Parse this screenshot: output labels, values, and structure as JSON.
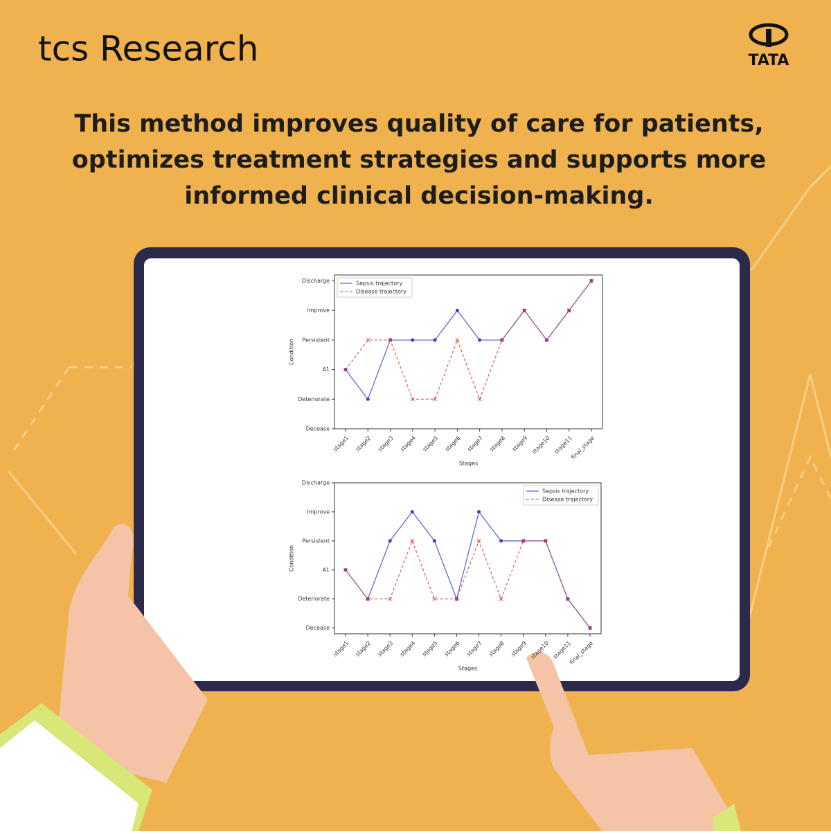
{
  "header": {
    "brand": "tcs Research",
    "logo": "TATA",
    "headline": [
      "This method improves quality of care for patients,",
      "optimizes treatment strategies and supports more",
      "informed clinical decision-making."
    ]
  },
  "chart_data": [
    {
      "type": "line",
      "xlabel": "Stages",
      "ylabel": "Condition",
      "categories": [
        "stage1",
        "stage2",
        "stage3",
        "stage4",
        "stage5",
        "stage6",
        "stage7",
        "stage8",
        "stage9",
        "stage10",
        "stage11",
        "final_stage"
      ],
      "ylim": [
        0,
        5.2
      ],
      "yticks": [
        {
          "value": 0,
          "label": "Decease"
        },
        {
          "value": 1,
          "label": "Deteriorate"
        },
        {
          "value": 2,
          "label": "A1"
        },
        {
          "value": 3,
          "label": "Persistent"
        },
        {
          "value": 4,
          "label": "Improve"
        },
        {
          "value": 5,
          "label": "Discharge"
        }
      ],
      "legend": "upper left",
      "series": [
        {
          "name": "Sepsis trajectory",
          "color": "#3a3ad8",
          "values": [
            2,
            1,
            3,
            3,
            3,
            4,
            3,
            3,
            4,
            3,
            4,
            5
          ]
        },
        {
          "name": "Disease trajectory",
          "color": "#e03c3c",
          "values": [
            2,
            3,
            3,
            1,
            1,
            3,
            1,
            3,
            4,
            3,
            4,
            5
          ]
        }
      ]
    },
    {
      "type": "line",
      "xlabel": "Stages",
      "ylabel": "Condition",
      "categories": [
        "stage1",
        "stage2",
        "stage3",
        "stage4",
        "stage5",
        "stage6",
        "stage7",
        "stage8",
        "stage9",
        "stage10",
        "stage11",
        "final_stage"
      ],
      "ylim": [
        -0.2,
        5
      ],
      "yticks": [
        {
          "value": 0,
          "label": "Decease"
        },
        {
          "value": 1,
          "label": "Deteriorate"
        },
        {
          "value": 2,
          "label": "A1"
        },
        {
          "value": 3,
          "label": "Persistent"
        },
        {
          "value": 4,
          "label": "Improve"
        },
        {
          "value": 5,
          "label": "Discharge"
        }
      ],
      "legend": "upper right",
      "series": [
        {
          "name": "Sepsis trajectory",
          "color": "#3a3ad8",
          "values": [
            2,
            1,
            3,
            4,
            3,
            1,
            4,
            3,
            3,
            3,
            1,
            0
          ]
        },
        {
          "name": "Disease trajectory",
          "color": "#e03c3c",
          "values": [
            2,
            1,
            1,
            3,
            1,
            1,
            3,
            1,
            3,
            3,
            1,
            0
          ]
        }
      ]
    }
  ]
}
